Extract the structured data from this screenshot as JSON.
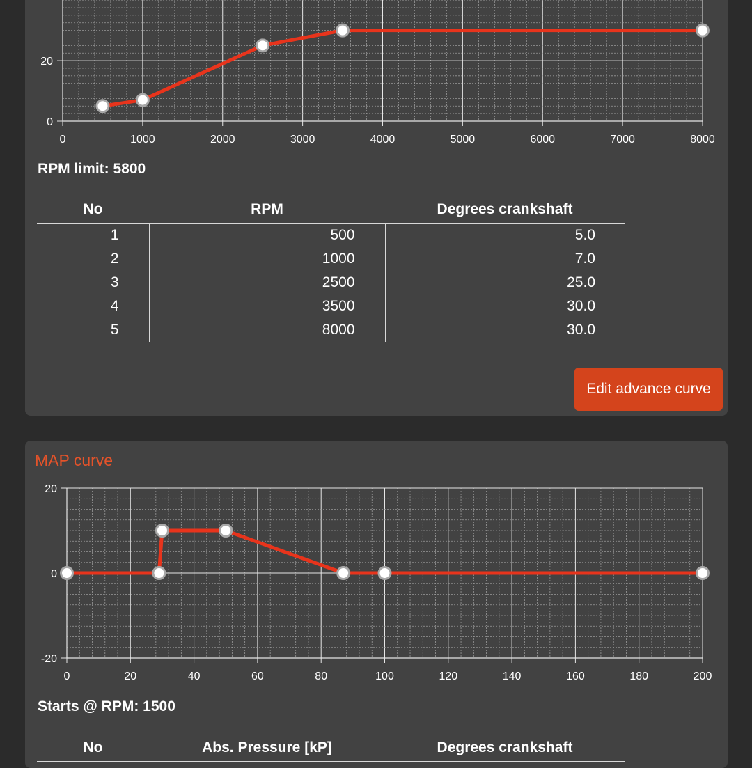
{
  "advance_section": {
    "rpm_limit_label": "RPM limit: 5800",
    "table": {
      "headers": [
        "No",
        "RPM",
        "Degrees crankshaft"
      ],
      "rows": [
        {
          "no": "1",
          "rpm": "500",
          "deg": "5.0"
        },
        {
          "no": "2",
          "rpm": "1000",
          "deg": "7.0"
        },
        {
          "no": "3",
          "rpm": "2500",
          "deg": "25.0"
        },
        {
          "no": "4",
          "rpm": "3500",
          "deg": "30.0"
        },
        {
          "no": "5",
          "rpm": "8000",
          "deg": "30.0"
        }
      ]
    },
    "edit_button_label": "Edit advance curve"
  },
  "map_section": {
    "title": "MAP curve",
    "starts_label": "Starts @ RPM: 1500",
    "table": {
      "headers": [
        "No",
        "Abs. Pressure [kP]",
        "Degrees crankshaft"
      ]
    }
  },
  "colors": {
    "accent": "#d4441c",
    "line": "#e8341c",
    "card": "#424242",
    "background": "#2b2b2b"
  },
  "chart_data": [
    {
      "type": "line",
      "x": [
        500,
        1000,
        2500,
        3500,
        8000
      ],
      "y": [
        5,
        7,
        25,
        30,
        30
      ],
      "xlim": [
        0,
        8000
      ],
      "x_ticks": [
        0,
        1000,
        2000,
        3000,
        4000,
        5000,
        6000,
        7000,
        8000
      ],
      "y_ticks": [
        0,
        20
      ],
      "grid": true,
      "title": "",
      "xlabel": "",
      "ylabel": ""
    },
    {
      "type": "line",
      "x": [
        0,
        29,
        30,
        50,
        87,
        100,
        200
      ],
      "y": [
        0,
        0,
        10,
        10,
        0,
        0,
        0
      ],
      "xlim": [
        0,
        200
      ],
      "ylim": [
        -20,
        20
      ],
      "x_ticks": [
        0,
        20,
        40,
        60,
        80,
        100,
        120,
        140,
        160,
        180,
        200
      ],
      "y_ticks": [
        -20,
        0,
        20
      ],
      "grid": true,
      "title": "MAP curve",
      "xlabel": "",
      "ylabel": ""
    }
  ]
}
